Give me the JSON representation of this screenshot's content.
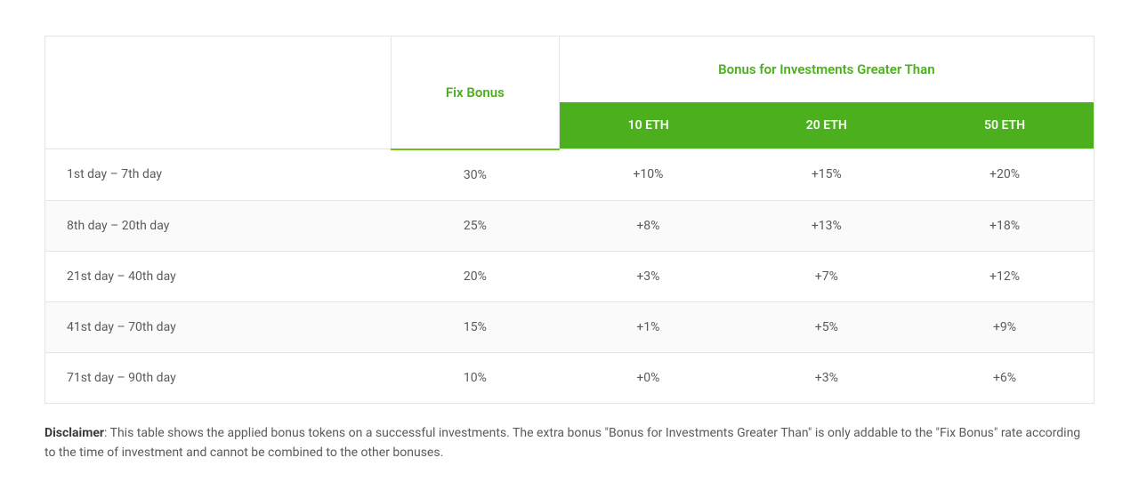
{
  "table": {
    "headers": {
      "fix_bonus": "Fix Bonus",
      "investment_bonus": "Bonus for Investments Greater Than",
      "eth_tiers": [
        "10 ETH",
        "20 ETH",
        "50 ETH"
      ]
    },
    "rows": [
      {
        "period": "1st day – 7th day",
        "fix": "30%",
        "b10": "+10%",
        "b20": "+15%",
        "b50": "+20%"
      },
      {
        "period": "8th day – 20th day",
        "fix": "25%",
        "b10": "+8%",
        "b20": "+13%",
        "b50": "+18%"
      },
      {
        "period": "21st day – 40th day",
        "fix": "20%",
        "b10": "+3%",
        "b20": "+7%",
        "b50": "+12%"
      },
      {
        "period": "41st day – 70th day",
        "fix": "15%",
        "b10": "+1%",
        "b20": "+5%",
        "b50": "+9%"
      },
      {
        "period": "71st day – 90th day",
        "fix": "10%",
        "b10": "+0%",
        "b20": "+3%",
        "b50": "+6%"
      }
    ],
    "colors": {
      "accent_green": "#4caf1d",
      "header_bg_green": "#4caf1d",
      "border": "#e5e5e5",
      "row_alt_bg": "#fafafa",
      "text": "#5a5a5a"
    }
  },
  "disclaimer": {
    "label": "Disclaimer",
    "text": ": This table shows the applied bonus tokens on a successful investments. The extra bonus \"Bonus for Investments Greater Than\" is only addable to the \"Fix Bonus\" rate according to the time of investment and cannot be combined to the other bonuses."
  }
}
